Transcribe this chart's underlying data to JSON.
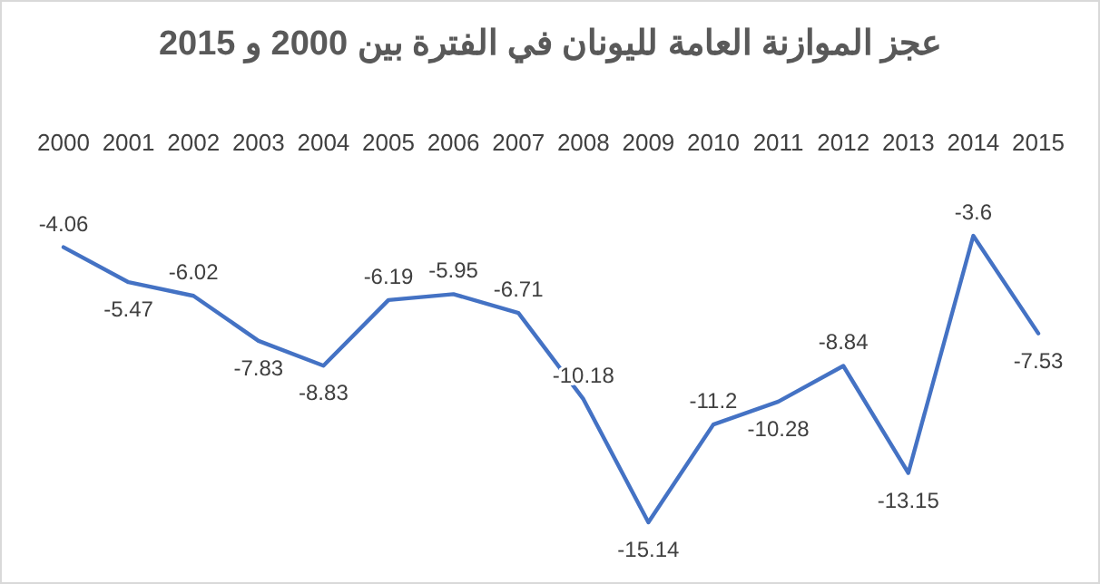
{
  "chart_data": {
    "type": "line",
    "title": "عجز الموازنة العامة لليونان في الفترة بين 2000 و 2015",
    "categories": [
      "2000",
      "2001",
      "2002",
      "2003",
      "2004",
      "2005",
      "2006",
      "2007",
      "2008",
      "2009",
      "2010",
      "2011",
      "2012",
      "2013",
      "2014",
      "2015"
    ],
    "series": [
      {
        "color": "#4472c4",
        "values": [
          -4.06,
          -5.47,
          -6.02,
          -7.83,
          -8.83,
          -6.19,
          -5.95,
          -6.71,
          -10.18,
          -15.14,
          -11.2,
          -10.28,
          -8.84,
          -13.15,
          -3.6,
          -7.53
        ]
      }
    ],
    "data_labels": true,
    "grid": false,
    "marker": "none",
    "line_style": "solid",
    "tick_labels": "x"
  }
}
